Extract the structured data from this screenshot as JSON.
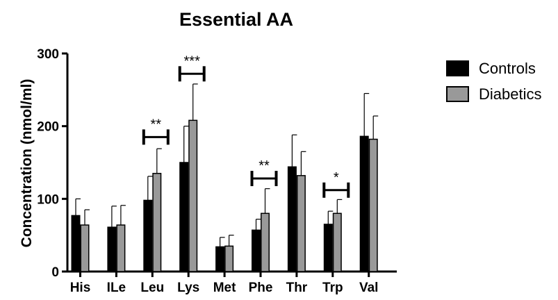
{
  "chart_data": {
    "type": "bar",
    "title": "Essential AA",
    "xlabel": "",
    "ylabel": "Concentration (nmol/ml)",
    "ylim": [
      0,
      300
    ],
    "yticks": [
      "0",
      "100",
      "200",
      "300"
    ],
    "categories": [
      "His",
      "ILe",
      "Leu",
      "Lys",
      "Met",
      "Phe",
      "Thr",
      "Trp",
      "Val"
    ],
    "series": [
      {
        "name": "Controls",
        "color": "#000000",
        "values": [
          77,
          61,
          98,
          150,
          34,
          57,
          144,
          65,
          186
        ],
        "error": [
          23,
          29,
          33,
          50,
          13,
          15,
          44,
          18,
          59
        ]
      },
      {
        "name": "Diabetics",
        "color": "#999999",
        "values": [
          64,
          64,
          135,
          208,
          35,
          80,
          132,
          80,
          182
        ],
        "error": [
          21,
          27,
          34,
          50,
          15,
          34,
          33,
          19,
          32
        ]
      }
    ],
    "significance": [
      {
        "category": "Leu",
        "label": "**",
        "level": 185
      },
      {
        "category": "Lys",
        "label": "***",
        "level": 272
      },
      {
        "category": "Phe",
        "label": "**",
        "level": 128
      },
      {
        "category": "Trp",
        "label": "*",
        "level": 112
      }
    ],
    "legend_position": "top-right",
    "grid": false
  }
}
